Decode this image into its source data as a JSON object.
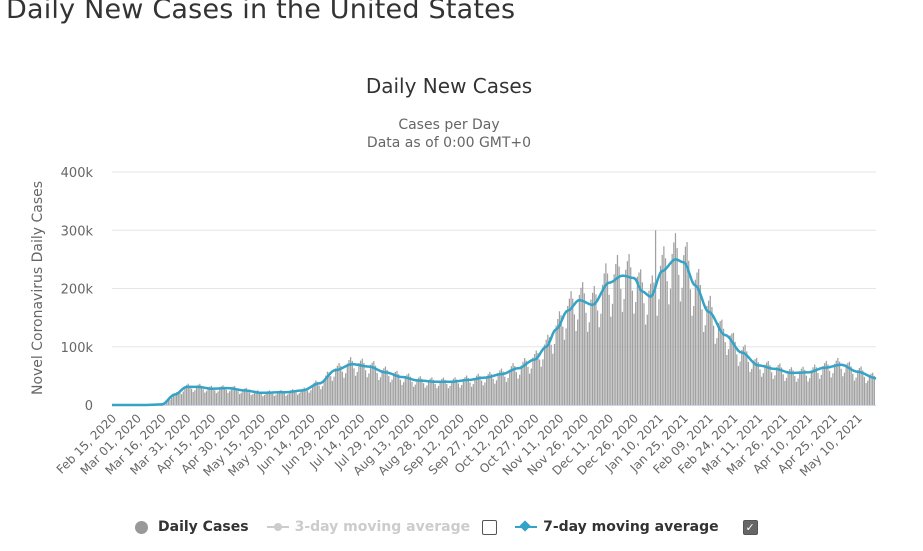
{
  "page": {
    "title": "Daily New Cases in the United States"
  },
  "colors": {
    "bars": "#a0a0a0",
    "ma7": "#33a3c7",
    "ma3_disabled": "#cccccc",
    "grid": "#e6e6e6",
    "axis_line": "#ccd6eb",
    "text": "#333333",
    "tick_text": "#666666"
  },
  "legend": {
    "items": [
      {
        "label": "Daily Cases",
        "enabled": true,
        "checkbox": null
      },
      {
        "label": "3-day moving average",
        "enabled": false,
        "checkbox": false
      },
      {
        "label": "7-day moving average",
        "enabled": true,
        "checkbox": true
      }
    ]
  },
  "chart_data": {
    "type": "bar",
    "title": "Daily New Cases",
    "subtitle_lines": [
      "Cases per Day",
      "Data as of 0:00 GMT+0"
    ],
    "xlabel": "",
    "ylabel": "Novel Coronavirus Daily Cases",
    "ylim": [
      0,
      400000
    ],
    "y_ticks": [
      0,
      100000,
      200000,
      300000,
      400000
    ],
    "y_tick_labels": [
      "0",
      "100k",
      "200k",
      "300k",
      "400k"
    ],
    "x_tick_labels": [
      "Feb 15, 2020",
      "Mar 01, 2020",
      "Mar 16, 2020",
      "Mar 31, 2020",
      "Apr 15, 2020",
      "Apr 30, 2020",
      "May 15, 2020",
      "May 30, 2020",
      "Jun 14, 2020",
      "Jun 29, 2020",
      "Jul 14, 2020",
      "Jul 29, 2020",
      "Aug 13, 2020",
      "Aug 28, 2020",
      "Sep 12, 2020",
      "Sep 27, 2020",
      "Oct 12, 2020",
      "Oct 27, 2020",
      "Nov 11, 2020",
      "Nov 26, 2020",
      "Dec 11, 2020",
      "Dec 26, 2020",
      "Jan 10, 2021",
      "Jan 25, 2021",
      "Feb 09, 2021",
      "Feb 24, 2021",
      "Mar 11, 2021",
      "Mar 26, 2021",
      "Apr 10, 2021",
      "Apr 25, 2021",
      "May 10, 2021"
    ],
    "x_start": "Feb 15, 2020",
    "x_days": 461,
    "grid": true,
    "legend_position": "bottom",
    "series": [
      {
        "name": "7-day moving average",
        "type": "line",
        "anchor_days_from_start": [
          0,
          20,
          30,
          38,
          45,
          52,
          60,
          70,
          80,
          90,
          105,
          115,
          125,
          135,
          145,
          155,
          165,
          175,
          185,
          195,
          205,
          215,
          225,
          235,
          245,
          255,
          262,
          268,
          275,
          282,
          290,
          300,
          308,
          315,
          320,
          325,
          332,
          340,
          345,
          352,
          360,
          370,
          380,
          390,
          400,
          410,
          420,
          430,
          440,
          450,
          461
        ],
        "values": [
          0,
          0,
          1000,
          18000,
          31000,
          31000,
          28000,
          29000,
          25000,
          21000,
          22000,
          25000,
          37000,
          60000,
          70000,
          66000,
          56000,
          48000,
          42000,
          40000,
          40000,
          43000,
          47000,
          53000,
          63000,
          78000,
          100000,
          130000,
          162000,
          180000,
          172000,
          210000,
          222000,
          218000,
          195000,
          186000,
          230000,
          250000,
          245000,
          205000,
          160000,
          120000,
          90000,
          68000,
          62000,
          55000,
          56000,
          64000,
          69000,
          57000,
          46000
        ]
      },
      {
        "name": "Daily Cases",
        "type": "bar",
        "note": "daily values approximate the 7-day average with weekly oscillation; peak ~300000 around Jan 8, 2021"
      }
    ],
    "peak_daily": 300000
  }
}
